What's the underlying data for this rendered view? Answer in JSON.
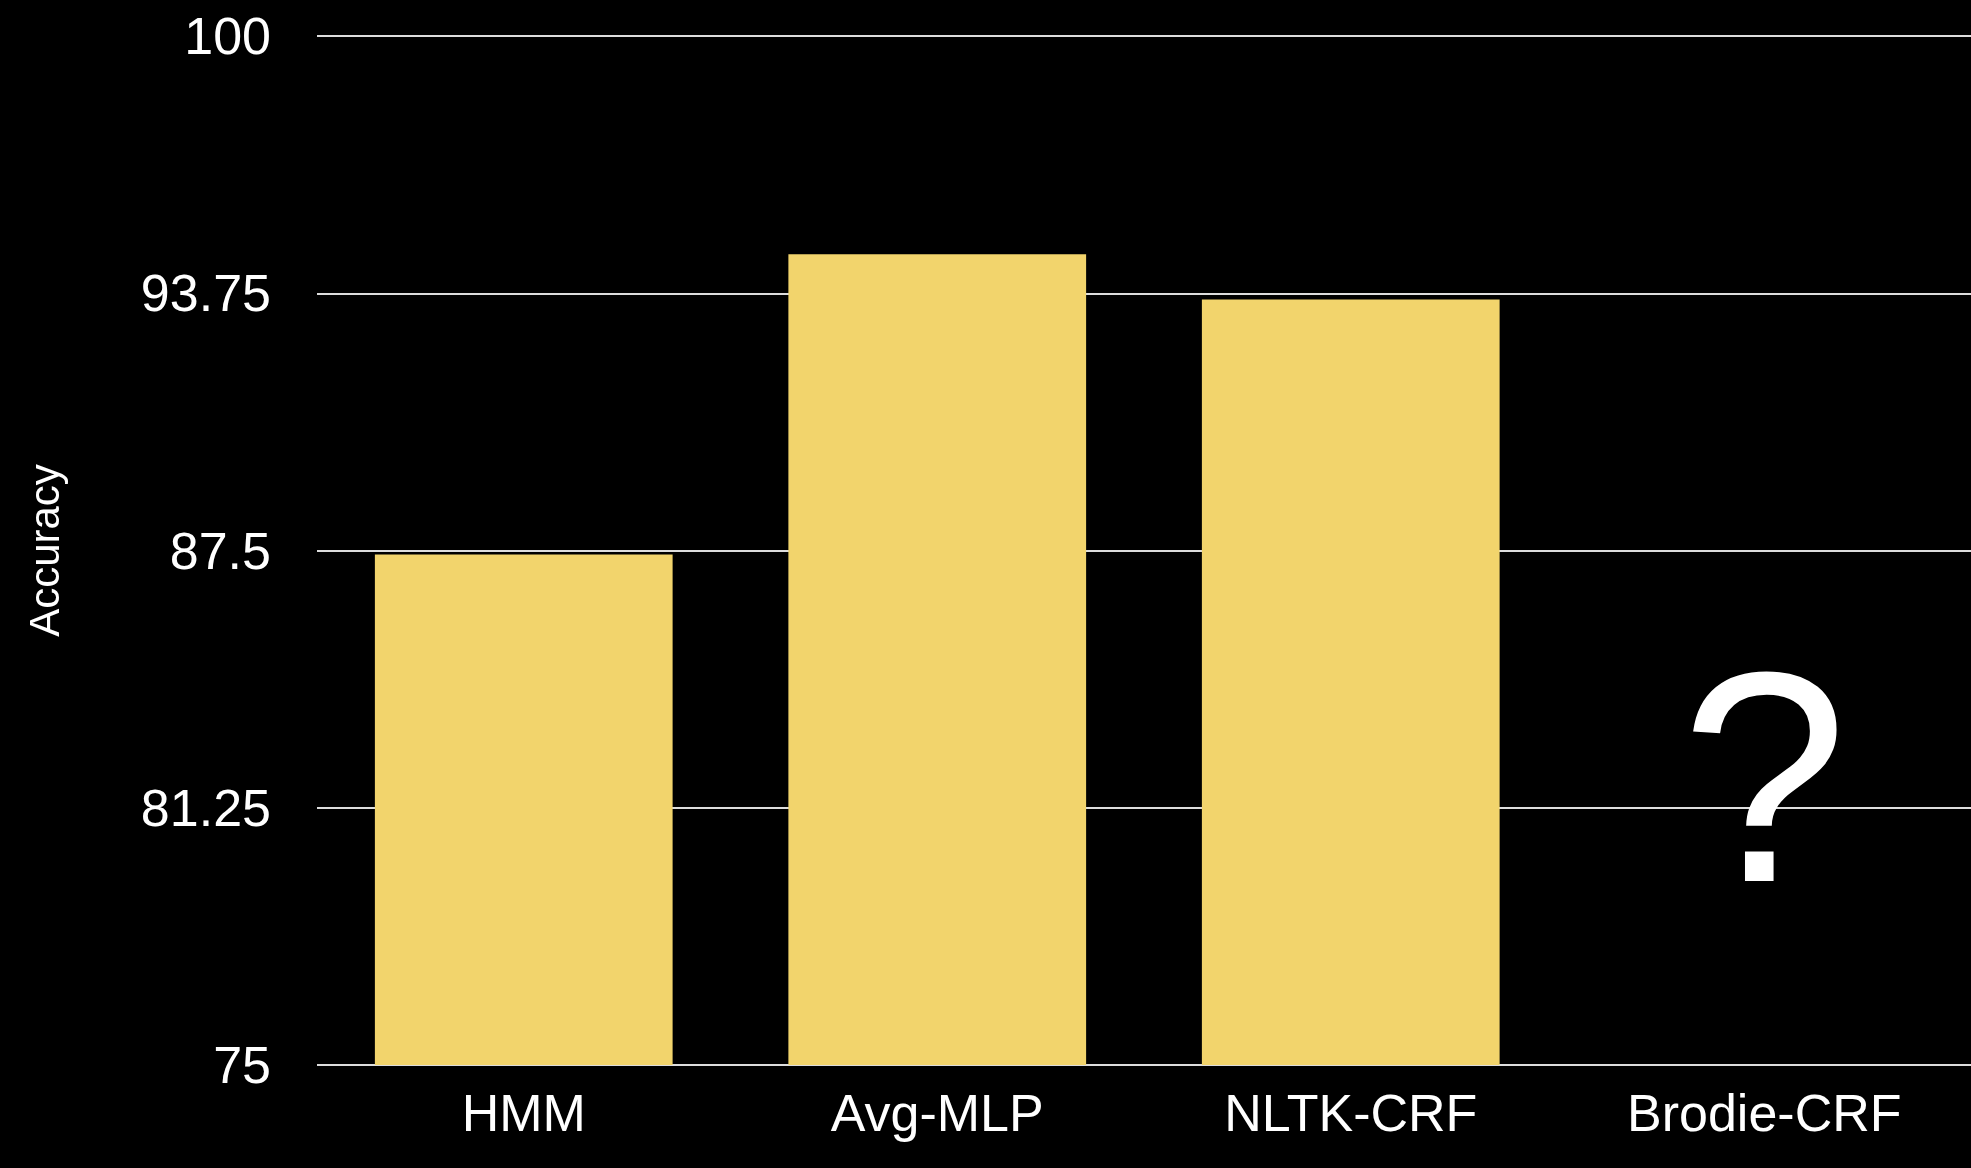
{
  "chart_data": {
    "type": "bar",
    "ylabel": "Accuracy",
    "categories": [
      "HMM",
      "Avg-MLP",
      "NLTK-CRF",
      "Brodie-CRF"
    ],
    "values": [
      87.4,
      94.7,
      93.6,
      null
    ],
    "color": "#f2d46c",
    "ylim": [
      75,
      100
    ],
    "yticks": [
      75,
      81.25,
      87.5,
      93.75,
      100
    ],
    "grid": "y",
    "annotations": [
      "?"
    ]
  }
}
